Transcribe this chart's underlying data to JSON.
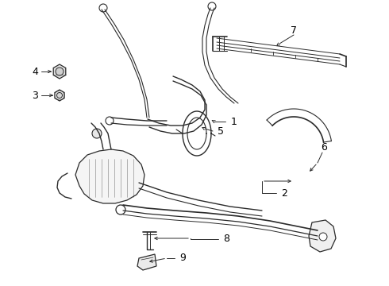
{
  "background_color": "#ffffff",
  "line_color": "#2a2a2a",
  "label_color": "#000000",
  "figsize": [
    4.9,
    3.6
  ],
  "dpi": 100,
  "part_lw": 1.0,
  "leader_lw": 0.7,
  "label_fs": 8.5
}
